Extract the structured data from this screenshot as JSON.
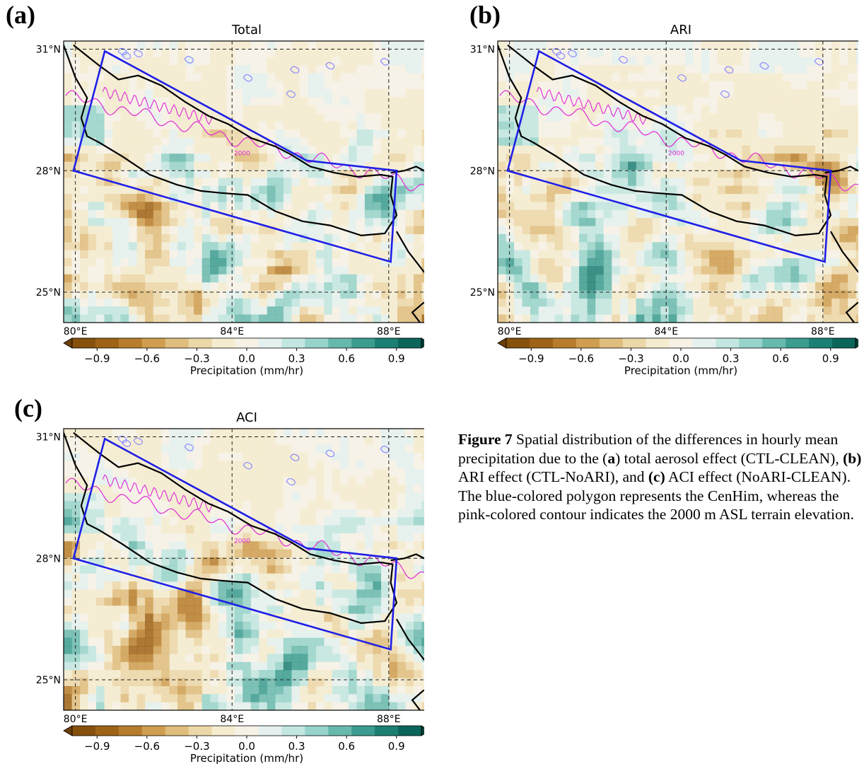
{
  "panels": [
    {
      "letter": "(a)",
      "title": "Total",
      "seed": 11
    },
    {
      "letter": "(b)",
      "title": "ARI",
      "seed": 37
    },
    {
      "letter": "(c)",
      "title": "ACI",
      "seed": 73
    }
  ],
  "map": {
    "lat_ticks": [
      "31°N",
      "28°N",
      "25°N"
    ],
    "lon_ticks": [
      "80°E",
      "84°E",
      "88°E"
    ],
    "contour_label": "2000"
  },
  "colorbar": {
    "ticks": [
      "−0.9",
      "−0.6",
      "−0.3",
      "0.0",
      "0.3",
      "0.6",
      "0.9"
    ],
    "label": "Precipitation (mm/hr)",
    "colors": [
      "#6e3e08",
      "#86500d",
      "#9e6316",
      "#b77d2c",
      "#cf9e50",
      "#dfbd7c",
      "#ecd7a8",
      "#f5eccf",
      "#f7f2e6",
      "#e4f1ef",
      "#c2e6e0",
      "#97d3ca",
      "#68b9ad",
      "#3b9c90",
      "#1c7f73",
      "#0b655a",
      "#013f36"
    ]
  },
  "caption": {
    "fig": "Figure 7",
    "t1": " Spatial distribution of the differences in hourly mean precipitation due to the (",
    "a": "a",
    "t2": ") total aerosol effect (CTL-CLEAN), ",
    "b": "(b)",
    "t3": " ARI effect (CTL-NoARI), and ",
    "c": "(c)",
    "t4": " ACI effect (NoARI-CLEAN). The blue-colored polygon represents the CenHim, whereas the pink-colored contour indicates the 2000 m ASL terrain elevation."
  }
}
